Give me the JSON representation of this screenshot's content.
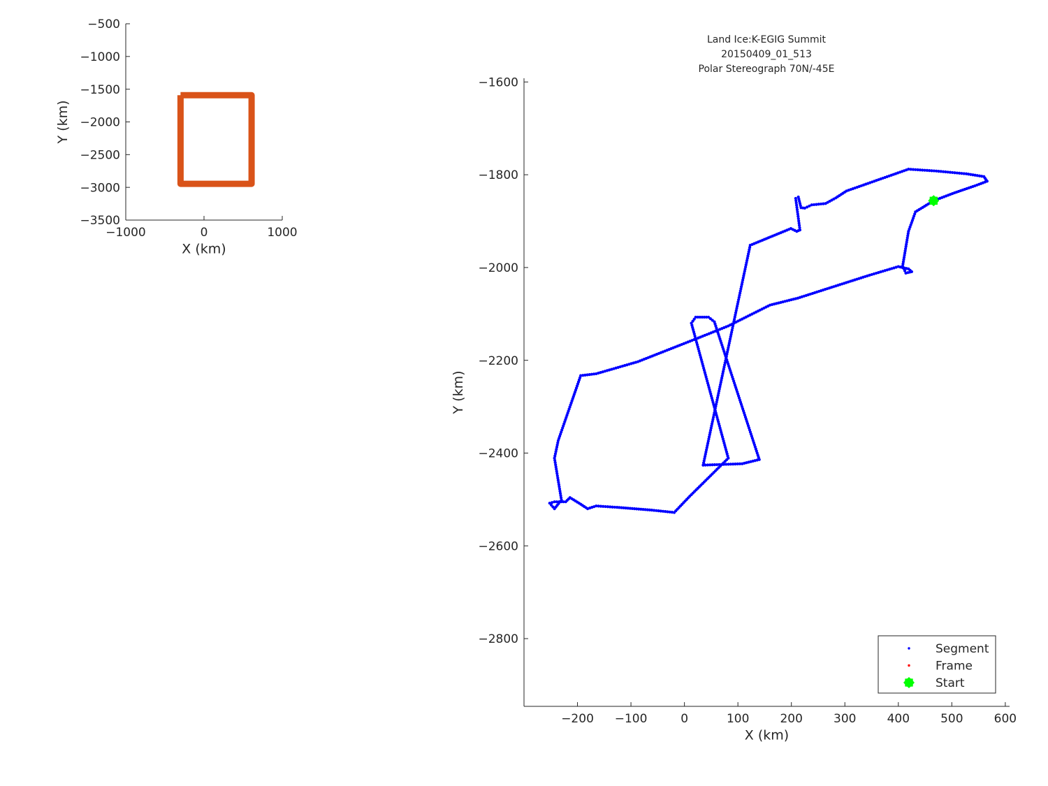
{
  "chart_data": [
    {
      "type": "line",
      "title": "",
      "xlabel": "X (km)",
      "ylabel": "Y (km)",
      "xlim": [
        -1000,
        1000
      ],
      "ylim": [
        -3500,
        -500
      ],
      "xticks": [
        -1000,
        0,
        1000
      ],
      "yticks": [
        -500,
        -1000,
        -1500,
        -2000,
        -2500,
        -3000,
        -3500
      ],
      "grid": false,
      "series": [
        {
          "color": "#D95319",
          "x": [
            -300,
            608,
            608,
            -300,
            -300
          ],
          "y": [
            -1592,
            -1592,
            -2946,
            -2946,
            -1592
          ]
        }
      ]
    },
    {
      "type": "scatter",
      "title_lines": [
        "Land Ice:K-EGIG Summit",
        "20150409_01_513",
        "Polar Stereograph 70N/-45E"
      ],
      "xlabel": "X (km)",
      "ylabel": "Y (km)",
      "xlim": [
        -300,
        608
      ],
      "ylim": [
        -2946,
        -1592
      ],
      "xticks": [
        -200,
        -100,
        0,
        100,
        200,
        300,
        400,
        500,
        600
      ],
      "yticks": [
        -1600,
        -1800,
        -2000,
        -2200,
        -2400,
        -2600,
        -2800
      ],
      "grid": false,
      "legend": {
        "placement": "bottom-right",
        "entries": [
          {
            "label": "Segment",
            "color": "#0000FF",
            "marker": "dot"
          },
          {
            "label": "Frame",
            "color": "#FF0000",
            "marker": "dot"
          },
          {
            "label": "Start",
            "color": "#00FF00",
            "marker": "star"
          }
        ]
      },
      "series": [
        {
          "name": "Segment",
          "color": "#0000FF",
          "x": [
            466,
            505,
            543,
            566,
            560,
            527,
            471,
            419,
            303,
            283,
            264,
            238,
            225,
            218,
            213,
            208,
            216,
            210,
            199,
            123,
            35,
            108,
            140,
            56,
            45,
            21,
            13,
            82,
            10,
            -19,
            -61,
            -126,
            -165,
            -181,
            -197,
            -214,
            -222,
            -243,
            -252,
            -243,
            -230,
            -243,
            -236,
            -194,
            -165,
            -87,
            30,
            82,
            160,
            212,
            342,
            400,
            419,
            425,
            414,
            408,
            419,
            432,
            466
          ],
          "y": [
            -1856,
            -1839,
            -1824,
            -1814,
            -1804,
            -1798,
            -1792,
            -1788,
            -1835,
            -1850,
            -1862,
            -1865,
            -1872,
            -1871,
            -1848,
            -1851,
            -1919,
            -1922,
            -1916,
            -1952,
            -2426,
            -2423,
            -2414,
            -2117,
            -2107,
            -2107,
            -2120,
            -2411,
            -2493,
            -2528,
            -2523,
            -2517,
            -2514,
            -2520,
            -2508,
            -2496,
            -2505,
            -2505,
            -2508,
            -2520,
            -2501,
            -2411,
            -2373,
            -2233,
            -2229,
            -2203,
            -2150,
            -2126,
            -2081,
            -2066,
            -2018,
            -1998,
            -2003,
            -2009,
            -2012,
            -1997,
            -1922,
            -1880,
            -1856
          ]
        },
        {
          "name": "Frame",
          "color": "#FF0000",
          "x": [],
          "y": []
        },
        {
          "name": "Start",
          "color": "#00FF00",
          "x": [
            466
          ],
          "y": [
            -1856
          ]
        }
      ]
    }
  ]
}
